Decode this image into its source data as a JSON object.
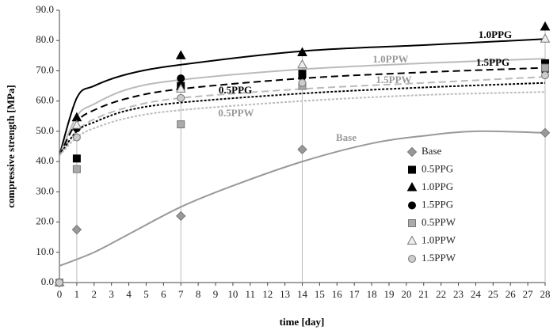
{
  "chart_data": {
    "type": "scatter",
    "x_label": "time [day]",
    "y_label": "compressive strength [MPa]",
    "xlim": [
      0,
      28
    ],
    "xticks": [
      0,
      1,
      2,
      3,
      4,
      5,
      6,
      7,
      8,
      9,
      10,
      11,
      12,
      13,
      14,
      15,
      16,
      17,
      18,
      19,
      20,
      21,
      22,
      23,
      24,
      25,
      26,
      27,
      28
    ],
    "ylim": [
      0,
      90
    ],
    "yticks": [
      {
        "value": 0,
        "label": "0.0"
      },
      {
        "value": 10,
        "label": "10.0"
      },
      {
        "value": 20,
        "label": "20.0"
      },
      {
        "value": 30,
        "label": "30.0"
      },
      {
        "value": 40,
        "label": "40.0"
      },
      {
        "value": 50,
        "label": "50.0"
      },
      {
        "value": 60,
        "label": "60.0"
      },
      {
        "value": 70,
        "label": "70.0"
      },
      {
        "value": 80,
        "label": "80.0"
      },
      {
        "value": 90,
        "label": "90.0"
      }
    ],
    "grid": false,
    "legend": "right",
    "x": [
      0,
      1,
      7,
      14,
      28
    ],
    "series": [
      {
        "name": "Base",
        "color": "#999999",
        "marker": "diamond",
        "values": [
          0,
          17.5,
          22,
          44,
          49.5
        ]
      },
      {
        "name": "0.5PPG",
        "color": "#000000",
        "marker": "square",
        "values": [
          0,
          41,
          65,
          69,
          72.5
        ]
      },
      {
        "name": "1.0PPG",
        "color": "#000000",
        "marker": "triangle",
        "values": [
          0,
          54.5,
          75,
          76,
          84.5
        ]
      },
      {
        "name": "1.5PPG",
        "color": "#000000",
        "marker": "circle",
        "values": [
          0,
          51,
          67.5,
          68,
          70
        ]
      },
      {
        "name": "0.5PPW",
        "color": "#aaaaaa",
        "marker": "square",
        "values": [
          0,
          37.5,
          52.3,
          65,
          71
        ]
      },
      {
        "name": "1.0PPW",
        "color": "#eeeeee",
        "marker": "triangle",
        "values": [
          0,
          52,
          64,
          72,
          80.5
        ]
      },
      {
        "name": "1.5PPW",
        "color": "#cccccc",
        "marker": "circle",
        "values": [
          0,
          48,
          61,
          66,
          68.5
        ]
      }
    ],
    "curves": [
      {
        "label": "1.0PPG",
        "color": "#000000",
        "dash": "solid",
        "x": [
          0,
          1,
          2,
          4,
          7,
          14,
          21,
          28
        ],
        "values": [
          42,
          61,
          65,
          69,
          72,
          76.5,
          78.5,
          80.5
        ]
      },
      {
        "label": "1.0PPW",
        "color": "#bbbbbb",
        "dash": "solid",
        "x": [
          0,
          1,
          2,
          4,
          7,
          14,
          21,
          28
        ],
        "values": [
          42,
          55,
          59,
          64,
          67,
          70.5,
          72.5,
          74
        ]
      },
      {
        "label": "1.5PPG",
        "color": "#000000",
        "dash": "dashed",
        "x": [
          0,
          1,
          2,
          4,
          7,
          14,
          21,
          28
        ],
        "values": [
          42,
          53,
          57,
          61,
          64,
          67.5,
          69.5,
          71
        ]
      },
      {
        "label": "1.5PPW",
        "color": "#bbbbbb",
        "dash": "dashed",
        "x": [
          0,
          1,
          2,
          4,
          7,
          14,
          21,
          28
        ],
        "values": [
          42,
          50,
          54,
          58,
          61,
          64,
          66,
          68
        ]
      },
      {
        "label": "0.5PPG",
        "color": "#000000",
        "dash": "dotted",
        "x": [
          0,
          1,
          2,
          4,
          7,
          14,
          21,
          28
        ],
        "values": [
          42,
          50,
          53,
          57,
          59.5,
          62.5,
          64.5,
          66
        ]
      },
      {
        "label": "0.5PPW",
        "color": "#bbbbbb",
        "dash": "dotted",
        "x": [
          0,
          1,
          2,
          4,
          7,
          14,
          21,
          28
        ],
        "values": [
          42,
          48,
          51,
          54.5,
          57,
          60,
          62,
          63
        ]
      },
      {
        "label": "Base",
        "color": "#999999",
        "dash": "solid",
        "x": [
          0,
          2,
          4,
          7,
          10,
          14,
          18,
          21,
          24,
          28
        ],
        "values": [
          5.5,
          10,
          16,
          25,
          32,
          40,
          46,
          48.5,
          50,
          49.5
        ]
      }
    ]
  }
}
